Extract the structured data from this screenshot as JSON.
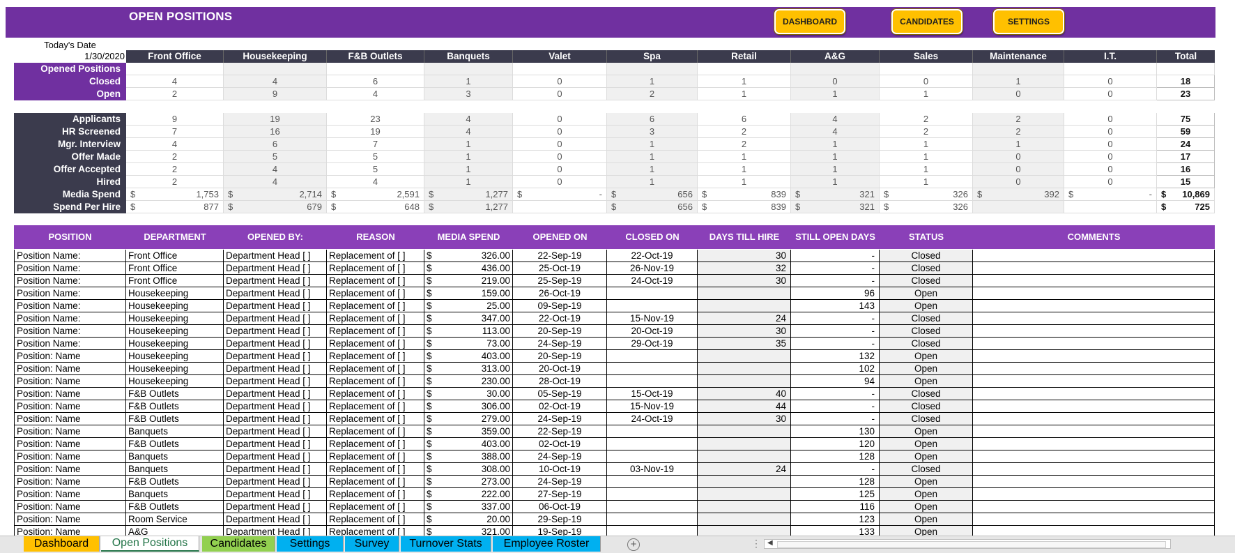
{
  "title": "OPEN POSITIONS",
  "nav_buttons": [
    "DASHBOARD",
    "CANDIDATES",
    "SETTINGS"
  ],
  "todays_date_label": "Today's Date",
  "todays_date": "1/30/2020",
  "departments": [
    "Front Office",
    "Housekeeping",
    "F&B Outlets",
    "Banquets",
    "Valet",
    "Spa",
    "Retail",
    "A&G",
    "Sales",
    "Maintenance",
    "I.T."
  ],
  "total_label": "Total",
  "opened_positions_label": "Opened Positions",
  "opened_rows": [
    {
      "label": "Closed",
      "values": [
        "4",
        "4",
        "6",
        "1",
        "0",
        "1",
        "1",
        "0",
        "0",
        "1",
        "0"
      ],
      "total": "18"
    },
    {
      "label": "Open",
      "values": [
        "2",
        "9",
        "4",
        "3",
        "0",
        "2",
        "1",
        "1",
        "1",
        "0",
        "0"
      ],
      "total": "23"
    }
  ],
  "pipeline_rows": [
    {
      "label": "Applicants",
      "values": [
        "9",
        "19",
        "23",
        "4",
        "0",
        "6",
        "6",
        "4",
        "2",
        "2",
        "0"
      ],
      "total": "75"
    },
    {
      "label": "HR Screened",
      "values": [
        "7",
        "16",
        "19",
        "4",
        "0",
        "3",
        "2",
        "4",
        "2",
        "2",
        "0"
      ],
      "total": "59"
    },
    {
      "label": "Mgr. Interview",
      "values": [
        "4",
        "6",
        "7",
        "1",
        "0",
        "1",
        "2",
        "1",
        "1",
        "1",
        "0"
      ],
      "total": "24"
    },
    {
      "label": "Offer Made",
      "values": [
        "2",
        "5",
        "5",
        "1",
        "0",
        "1",
        "1",
        "1",
        "1",
        "0",
        "0"
      ],
      "total": "17"
    },
    {
      "label": "Offer Accepted",
      "values": [
        "2",
        "4",
        "5",
        "1",
        "0",
        "1",
        "1",
        "1",
        "1",
        "0",
        "0"
      ],
      "total": "16"
    },
    {
      "label": "Hired",
      "values": [
        "2",
        "4",
        "4",
        "1",
        "0",
        "1",
        "1",
        "1",
        "1",
        "0",
        "0"
      ],
      "total": "15"
    }
  ],
  "money_rows": [
    {
      "label": "Media Spend",
      "values": [
        "1,753",
        "2,714",
        "2,591",
        "1,277",
        "-",
        "656",
        "839",
        "321",
        "326",
        "392",
        "-"
      ],
      "total": "10,869"
    },
    {
      "label": "Spend Per Hire",
      "values": [
        "877",
        "679",
        "648",
        "1,277",
        "",
        "656",
        "839",
        "321",
        "326",
        "",
        ""
      ],
      "total": "725"
    }
  ],
  "currency_symbol": "$",
  "table_headers": [
    "POSITION",
    "DEPARTMENT",
    "OPENED BY:",
    "REASON",
    "MEDIA SPEND",
    "OPENED ON",
    "CLOSED ON",
    "DAYS TILL HIRE",
    "STILL OPEN DAYS",
    "STATUS",
    "COMMENTS"
  ],
  "positions": [
    {
      "position": "Position Name:",
      "department": "Front Office",
      "opened_by": "Department Head [   ]",
      "reason": "Replacement of  [    ]",
      "spend": "326.00",
      "opened_on": "22-Sep-19",
      "closed_on": "22-Oct-19",
      "days_till_hire": "30",
      "still_open_days": "-",
      "status": "Closed"
    },
    {
      "position": "Position Name:",
      "department": "Front Office",
      "opened_by": "Department Head [   ]",
      "reason": "Replacement of  [    ]",
      "spend": "436.00",
      "opened_on": "25-Oct-19",
      "closed_on": "26-Nov-19",
      "days_till_hire": "32",
      "still_open_days": "-",
      "status": "Closed"
    },
    {
      "position": "Position Name:",
      "department": "Front Office",
      "opened_by": "Department Head [   ]",
      "reason": "Replacement of  [    ]",
      "spend": "219.00",
      "opened_on": "25-Sep-19",
      "closed_on": "24-Oct-19",
      "days_till_hire": "30",
      "still_open_days": "-",
      "status": "Closed"
    },
    {
      "position": "Position Name:",
      "department": "Housekeeping",
      "opened_by": "Department Head [   ]",
      "reason": "Replacement of  [    ]",
      "spend": "159.00",
      "opened_on": "26-Oct-19",
      "closed_on": "",
      "days_till_hire": "",
      "still_open_days": "96",
      "status": "Open"
    },
    {
      "position": "Position Name:",
      "department": "Housekeeping",
      "opened_by": "Department Head [   ]",
      "reason": "Replacement of  [    ]",
      "spend": "25.00",
      "opened_on": "09-Sep-19",
      "closed_on": "",
      "days_till_hire": "",
      "still_open_days": "143",
      "status": "Open"
    },
    {
      "position": "Position Name:",
      "department": "Housekeeping",
      "opened_by": "Department Head [   ]",
      "reason": "Replacement of  [    ]",
      "spend": "347.00",
      "opened_on": "22-Oct-19",
      "closed_on": "15-Nov-19",
      "days_till_hire": "24",
      "still_open_days": "-",
      "status": "Closed"
    },
    {
      "position": "Position Name:",
      "department": "Housekeeping",
      "opened_by": "Department Head [   ]",
      "reason": "Replacement of  [    ]",
      "spend": "113.00",
      "opened_on": "20-Sep-19",
      "closed_on": "20-Oct-19",
      "days_till_hire": "30",
      "still_open_days": "-",
      "status": "Closed"
    },
    {
      "position": "Position Name:",
      "department": "Housekeeping",
      "opened_by": "Department Head [   ]",
      "reason": "Replacement of  [    ]",
      "spend": "73.00",
      "opened_on": "24-Sep-19",
      "closed_on": "29-Oct-19",
      "days_till_hire": "35",
      "still_open_days": "-",
      "status": "Closed"
    },
    {
      "position": "Position: Name",
      "department": "Housekeeping",
      "opened_by": "Department Head [   ]",
      "reason": "Replacement of  [    ]",
      "spend": "403.00",
      "opened_on": "20-Sep-19",
      "closed_on": "",
      "days_till_hire": "",
      "still_open_days": "132",
      "status": "Open"
    },
    {
      "position": "Position: Name",
      "department": "Housekeeping",
      "opened_by": "Department Head [   ]",
      "reason": "Replacement of  [    ]",
      "spend": "313.00",
      "opened_on": "20-Oct-19",
      "closed_on": "",
      "days_till_hire": "",
      "still_open_days": "102",
      "status": "Open"
    },
    {
      "position": "Position: Name",
      "department": "Housekeeping",
      "opened_by": "Department Head [   ]",
      "reason": "Replacement of  [    ]",
      "spend": "230.00",
      "opened_on": "28-Oct-19",
      "closed_on": "",
      "days_till_hire": "",
      "still_open_days": "94",
      "status": "Open"
    },
    {
      "position": "Position: Name",
      "department": "F&B Outlets",
      "opened_by": "Department Head [   ]",
      "reason": "Replacement of  [    ]",
      "spend": "30.00",
      "opened_on": "05-Sep-19",
      "closed_on": "15-Oct-19",
      "days_till_hire": "40",
      "still_open_days": "-",
      "status": "Closed"
    },
    {
      "position": "Position: Name",
      "department": "F&B Outlets",
      "opened_by": "Department Head [   ]",
      "reason": "Replacement of  [    ]",
      "spend": "306.00",
      "opened_on": "02-Oct-19",
      "closed_on": "15-Nov-19",
      "days_till_hire": "44",
      "still_open_days": "-",
      "status": "Closed"
    },
    {
      "position": "Position: Name",
      "department": "F&B Outlets",
      "opened_by": "Department Head [   ]",
      "reason": "Replacement of  [    ]",
      "spend": "279.00",
      "opened_on": "24-Sep-19",
      "closed_on": "24-Oct-19",
      "days_till_hire": "30",
      "still_open_days": "-",
      "status": "Closed"
    },
    {
      "position": "Position: Name",
      "department": "Banquets",
      "opened_by": "Department Head [   ]",
      "reason": "Replacement of  [    ]",
      "spend": "359.00",
      "opened_on": "22-Sep-19",
      "closed_on": "",
      "days_till_hire": "",
      "still_open_days": "130",
      "status": "Open"
    },
    {
      "position": "Position: Name",
      "department": "F&B Outlets",
      "opened_by": "Department Head [   ]",
      "reason": "Replacement of  [    ]",
      "spend": "403.00",
      "opened_on": "02-Oct-19",
      "closed_on": "",
      "days_till_hire": "",
      "still_open_days": "120",
      "status": "Open"
    },
    {
      "position": "Position: Name",
      "department": "Banquets",
      "opened_by": "Department Head [   ]",
      "reason": "Replacement of  [    ]",
      "spend": "388.00",
      "opened_on": "24-Sep-19",
      "closed_on": "",
      "days_till_hire": "",
      "still_open_days": "128",
      "status": "Open"
    },
    {
      "position": "Position: Name",
      "department": "Banquets",
      "opened_by": "Department Head [   ]",
      "reason": "Replacement of  [    ]",
      "spend": "308.00",
      "opened_on": "10-Oct-19",
      "closed_on": "03-Nov-19",
      "days_till_hire": "24",
      "still_open_days": "-",
      "status": "Closed"
    },
    {
      "position": "Position: Name",
      "department": "F&B Outlets",
      "opened_by": "Department Head [   ]",
      "reason": "Replacement of  [    ]",
      "spend": "273.00",
      "opened_on": "24-Sep-19",
      "closed_on": "",
      "days_till_hire": "",
      "still_open_days": "128",
      "status": "Open"
    },
    {
      "position": "Position: Name",
      "department": "Banquets",
      "opened_by": "Department Head [   ]",
      "reason": "Replacement of  [    ]",
      "spend": "222.00",
      "opened_on": "27-Sep-19",
      "closed_on": "",
      "days_till_hire": "",
      "still_open_days": "125",
      "status": "Open"
    },
    {
      "position": "Position: Name",
      "department": "F&B Outlets",
      "opened_by": "Department Head [   ]",
      "reason": "Replacement of  [    ]",
      "spend": "337.00",
      "opened_on": "06-Oct-19",
      "closed_on": "",
      "days_till_hire": "",
      "still_open_days": "116",
      "status": "Open"
    },
    {
      "position": "Position: Name",
      "department": "Room Service",
      "opened_by": "Department Head [   ]",
      "reason": "Replacement of  [    ]",
      "spend": "20.00",
      "opened_on": "29-Sep-19",
      "closed_on": "",
      "days_till_hire": "",
      "still_open_days": "123",
      "status": "Open"
    },
    {
      "position": "Position: Name",
      "department": "A&G",
      "opened_by": "Department Head [   ]",
      "reason": "Replacement of  [    ]",
      "spend": "321.00",
      "opened_on": "19-Sep-19",
      "closed_on": "",
      "days_till_hire": "",
      "still_open_days": "133",
      "status": "Open"
    }
  ],
  "sheet_tabs": [
    {
      "label": "Dashboard",
      "color": "#ffc000",
      "active": false
    },
    {
      "label": "Open Positions",
      "color": "#ffffff",
      "active": true
    },
    {
      "label": "Candidates",
      "color": "#92d050",
      "active": false
    },
    {
      "label": "Settings",
      "color": "#00b0f0",
      "active": false
    },
    {
      "label": "Survey",
      "color": "#00b0f0",
      "active": false
    },
    {
      "label": "Turnover Stats",
      "color": "#00b0f0",
      "active": false
    },
    {
      "label": "Employee Roster",
      "color": "#00b0f0",
      "active": false
    }
  ],
  "add_sheet_symbol": "+",
  "colors": {
    "banner": "#7030a0",
    "header_dark": "#3b3b4d",
    "table_header": "#8a40b8",
    "button": "#ffc000"
  },
  "icons": {
    "add_sheet": "plus-circle-icon",
    "scroll_left": "chevron-left-icon",
    "split": "vertical-dots-icon"
  }
}
